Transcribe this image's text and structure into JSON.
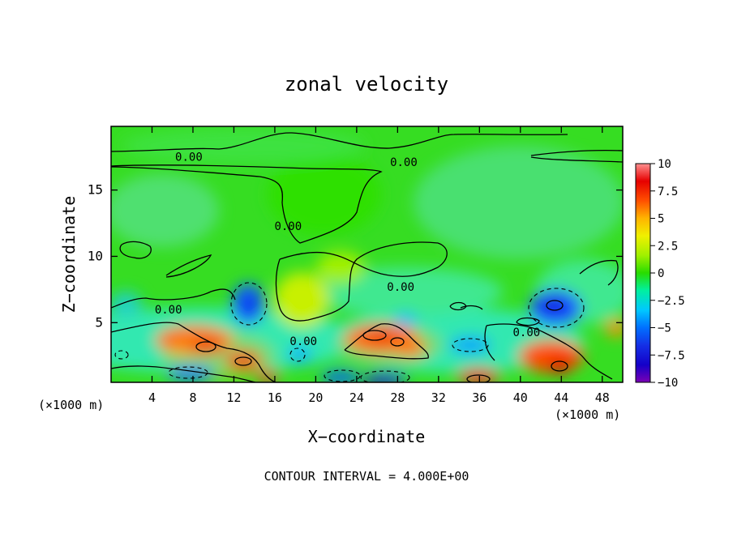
{
  "chart_data": {
    "type": "heatmap",
    "title": "zonal velocity",
    "xlabel": "X−coordinate",
    "ylabel": "Z−coordinate",
    "x_unit_left": "(×1000 m)",
    "x_unit_right": "(×1000 m)",
    "footer": "CONTOUR INTERVAL = 4.000E+00",
    "xlim": [
      0,
      50
    ],
    "ylim": [
      0.5,
      19.8
    ],
    "x_ticks": [
      "4",
      "8",
      "12",
      "16",
      "20",
      "24",
      "28",
      "32",
      "36",
      "40",
      "44",
      "48"
    ],
    "y_ticks": [
      "5",
      "10",
      "15"
    ],
    "colorbar": {
      "ticks": [
        "10",
        "7.5",
        "5",
        "2.5",
        "0",
        "−2.5",
        "−5",
        "−7.5",
        "−10"
      ],
      "range": [
        -10,
        10
      ],
      "colors": [
        "#7a00b4",
        "#1400d2",
        "#0050ff",
        "#00c8ff",
        "#00f0b4",
        "#14dc14",
        "#3cdc00",
        "#a0f000",
        "#f0f000",
        "#ffb400",
        "#ff5000",
        "#e60000",
        "#ff8080"
      ]
    },
    "contour_labels": [
      {
        "text": "0.00",
        "x": 7.6,
        "y": 17.5
      },
      {
        "text": "0.00",
        "x": 28.6,
        "y": 17.1
      },
      {
        "text": "0.00",
        "x": 17.3,
        "y": 12.3
      },
      {
        "text": "0.00",
        "x": 28.3,
        "y": 7.7
      },
      {
        "text": "0.00",
        "x": 5.6,
        "y": 6.0
      },
      {
        "text": "0.00",
        "x": 18.8,
        "y": 3.6
      },
      {
        "text": "0.00",
        "x": 40.6,
        "y": 4.3
      }
    ],
    "features": [
      {
        "kind": "max",
        "x": 9.5,
        "y": 3.0,
        "value": 8.5
      },
      {
        "kind": "max",
        "x": 13.0,
        "y": 2.0,
        "value": 8.0
      },
      {
        "kind": "max",
        "x": 15.0,
        "y": 0.8,
        "value": 7.5
      },
      {
        "kind": "max",
        "x": 26.5,
        "y": 3.7,
        "value": 8.5
      },
      {
        "kind": "max",
        "x": 29.0,
        "y": 2.9,
        "value": 7.0
      },
      {
        "kind": "max",
        "x": 35.0,
        "y": 0.8,
        "value": 8.0
      },
      {
        "kind": "max",
        "x": 44.0,
        "y": 1.4,
        "value": 8.5
      },
      {
        "kind": "max",
        "x": 49.5,
        "y": 4.5,
        "value": 6.0
      },
      {
        "kind": "max",
        "x": 18.0,
        "y": 8.5,
        "value": 3.0
      },
      {
        "kind": "min",
        "x": 13.5,
        "y": 6.8,
        "value": -5.5
      },
      {
        "kind": "min",
        "x": 43.3,
        "y": 6.0,
        "value": -7.0
      },
      {
        "kind": "min",
        "x": 27.0,
        "y": 0.6,
        "value": -6.5
      },
      {
        "kind": "min",
        "x": 8.0,
        "y": 0.9,
        "value": -4.0
      },
      {
        "kind": "min",
        "x": 20.5,
        "y": 0.6,
        "value": -4.5
      },
      {
        "kind": "min",
        "x": 36.0,
        "y": 2.8,
        "value": -4.0
      },
      {
        "kind": "min",
        "x": 19.0,
        "y": 2.2,
        "value": -3.5
      },
      {
        "kind": "min",
        "x": 2.0,
        "y": 5.5,
        "value": -3.0
      },
      {
        "kind": "min",
        "x": 23.0,
        "y": 7.5,
        "value": -2.5
      }
    ]
  }
}
